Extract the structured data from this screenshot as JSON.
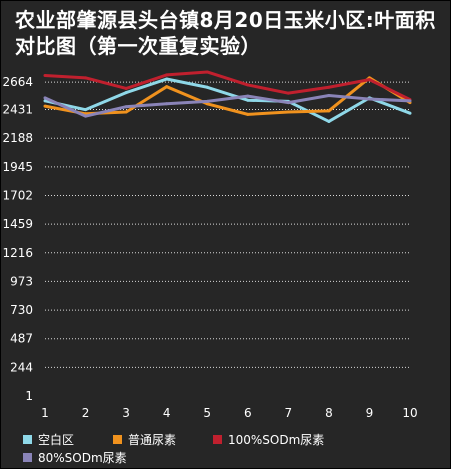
{
  "chart_data": {
    "type": "line",
    "title": "农业部肇源县头台镇8月20日玉米小区:叶面积对比图（第一次重复实验）",
    "xlabel": "",
    "ylabel": "",
    "x": [
      1,
      2,
      3,
      4,
      5,
      6,
      7,
      8,
      9,
      10
    ],
    "y_ticks": [
      1,
      244,
      487,
      730,
      973,
      1216,
      1459,
      1702,
      1945,
      2188,
      2431,
      2664
    ],
    "ylim": [
      1,
      2775
    ],
    "grid": "horizontal dotted",
    "legend_position": "bottom",
    "series": [
      {
        "name": "空白区",
        "color": "#8fd8e8",
        "values": [
          2505,
          2430,
          2575,
          2690,
          2620,
          2510,
          2500,
          2330,
          2530,
          2400
        ]
      },
      {
        "name": "普通尿素",
        "color": "#f0921e",
        "values": [
          2460,
          2395,
          2410,
          2625,
          2480,
          2390,
          2410,
          2420,
          2700,
          2490
        ]
      },
      {
        "name": "100%SODm尿素",
        "color": "#c0202e",
        "values": [
          2720,
          2700,
          2610,
          2725,
          2750,
          2640,
          2570,
          2620,
          2685,
          2515
        ]
      },
      {
        "name": "80%SODm尿素",
        "color": "#8a84b8",
        "values": [
          2530,
          2375,
          2455,
          2480,
          2500,
          2545,
          2490,
          2550,
          2520,
          2505
        ]
      }
    ]
  }
}
